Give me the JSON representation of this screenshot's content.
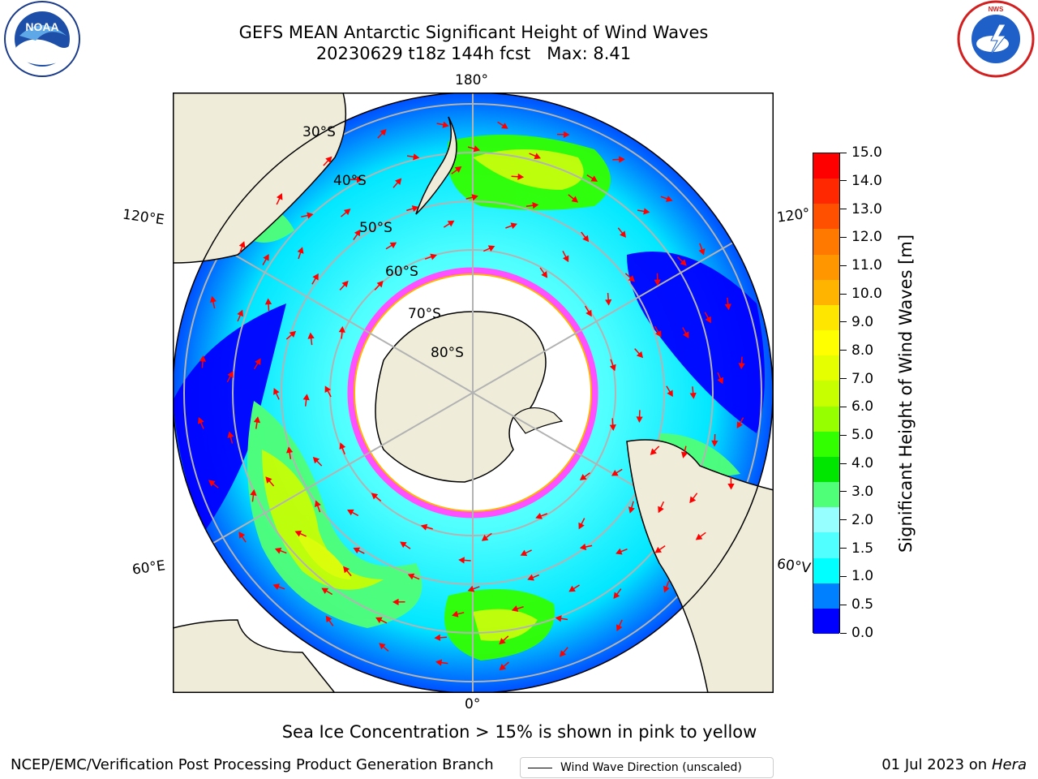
{
  "title": {
    "line1": "GEFS MEAN Antarctic Significant Height of Wind Waves",
    "line2": "20230629 t18z 144h fcst   Max: 8.41"
  },
  "map": {
    "lon_labels": {
      "top": "180°",
      "upper_left": "120°E",
      "upper_right": "120°",
      "lower_left": "60°E",
      "lower_right": "60°V",
      "bottom": "0°"
    },
    "lat_labels": [
      "30°S",
      "40°S",
      "50°S",
      "60°S",
      "70°S",
      "80°S"
    ],
    "legend": "Wind Wave Direction (unscaled)"
  },
  "colorbar": {
    "label": "Significant Height of Wind Waves [m]",
    "ticks": [
      "15.0",
      "14.0",
      "13.0",
      "12.0",
      "11.0",
      "10.0",
      "9.0",
      "8.0",
      "7.0",
      "6.0",
      "5.0",
      "4.0",
      "3.0",
      "2.0",
      "1.5",
      "1.0",
      "0.5",
      "0.0"
    ],
    "colors": [
      "#ff0000",
      "#ff2800",
      "#ff5000",
      "#ff7800",
      "#ff9600",
      "#ffb400",
      "#ffe600",
      "#ffff00",
      "#e6ff00",
      "#c8ff00",
      "#96ff00",
      "#32ff00",
      "#00e600",
      "#50ff78",
      "#96ffff",
      "#50ffff",
      "#00ffff",
      "#0080ff",
      "#0000ff"
    ]
  },
  "subtitle": "Sea Ice Concentration > 15% is shown in pink to yellow",
  "footer": {
    "left": "NCEP/EMC/Verification Post Processing Product Generation Branch",
    "right_prefix": "01 Jul 2023 on ",
    "right_host": "Hera"
  },
  "logos": {
    "left": "NOAA",
    "right": "NATIONAL WEATHER SERVICE"
  }
}
